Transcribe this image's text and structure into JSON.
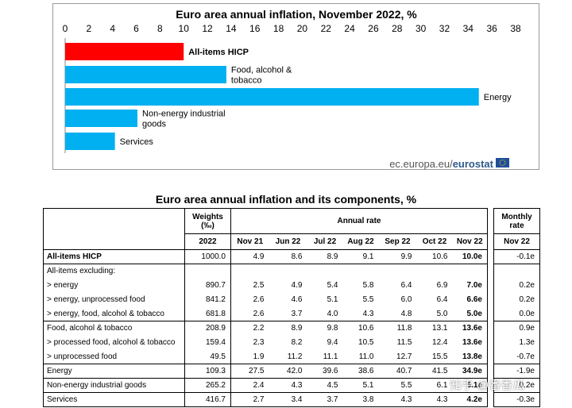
{
  "chart_data": {
    "type": "bar",
    "orientation": "horizontal",
    "title": "Euro area annual inflation, November 2022, %",
    "xlim": [
      0,
      38
    ],
    "ticks": [
      0,
      2,
      4,
      6,
      8,
      10,
      12,
      14,
      16,
      18,
      20,
      22,
      24,
      26,
      28,
      30,
      32,
      34,
      36,
      38
    ],
    "categories": [
      "All-items HICP",
      "Food, alcohol & tobacco",
      "Energy",
      "Non-energy industrial goods",
      "Services"
    ],
    "values": [
      10.0,
      13.6,
      34.9,
      6.1,
      4.2
    ],
    "colors": [
      "#ff0000",
      "#00b0f0",
      "#00b0f0",
      "#00b0f0",
      "#00b0f0"
    ],
    "label_lines": [
      [
        "All-items HICP"
      ],
      [
        "Food, alcohol &",
        "tobacco"
      ],
      [
        "Energy"
      ],
      [
        "Non-energy industrial",
        "goods"
      ],
      [
        "Services"
      ]
    ],
    "footer": {
      "site": "ec.europa.eu/",
      "brand": "eurostat"
    }
  },
  "table": {
    "title": "Euro area annual inflation and its components, %",
    "headers": {
      "weights": "Weights",
      "weights_unit": "(‰)",
      "annual_rate": "Annual rate",
      "monthly_1": "Monthly",
      "monthly_2": "rate",
      "year": "2022",
      "months": [
        "Nov 21",
        "Jun 22",
        "Jul 22",
        "Aug 22",
        "Sep 22",
        "Oct 22",
        "Nov 22"
      ],
      "monthly_month": "Nov 22"
    },
    "rows": [
      {
        "label": "All-items HICP",
        "weight": "1000.0",
        "values": [
          "4.9",
          "8.6",
          "8.9",
          "9.1",
          "9.9",
          "10.6",
          "10.0e"
        ],
        "monthly": "-0.1e"
      },
      {
        "label": "All-items excluding:"
      },
      {
        "label": "> energy",
        "weight": "890.7",
        "values": [
          "2.5",
          "4.9",
          "5.4",
          "5.8",
          "6.4",
          "6.9",
          "7.0e"
        ],
        "monthly": "0.2e"
      },
      {
        "label": "> energy, unprocessed food",
        "weight": "841.2",
        "values": [
          "2.6",
          "4.6",
          "5.1",
          "5.5",
          "6.0",
          "6.4",
          "6.6e"
        ],
        "monthly": "0.2e"
      },
      {
        "label": "> energy, food, alcohol & tobacco",
        "weight": "681.8",
        "values": [
          "2.6",
          "3.7",
          "4.0",
          "4.3",
          "4.8",
          "5.0",
          "5.0e"
        ],
        "monthly": "0.0e"
      },
      {
        "label": "Food, alcohol & tobacco",
        "weight": "208.9",
        "values": [
          "2.2",
          "8.9",
          "9.8",
          "10.6",
          "11.8",
          "13.1",
          "13.6e"
        ],
        "monthly": "0.9e"
      },
      {
        "label": "> processed food, alcohol & tobacco",
        "weight": "159.4",
        "values": [
          "2.3",
          "8.2",
          "9.4",
          "10.5",
          "11.5",
          "12.4",
          "13.6e"
        ],
        "monthly": "1.3e"
      },
      {
        "label": "> unprocessed food",
        "weight": "49.5",
        "values": [
          "1.9",
          "11.2",
          "11.1",
          "11.0",
          "12.7",
          "15.5",
          "13.8e"
        ],
        "monthly": "-0.7e"
      },
      {
        "label": "Energy",
        "weight": "109.3",
        "values": [
          "27.5",
          "42.0",
          "39.6",
          "38.6",
          "40.7",
          "41.5",
          "34.9e"
        ],
        "monthly": "-1.9e"
      },
      {
        "label": "Non-energy industrial goods",
        "weight": "265.2",
        "values": [
          "2.4",
          "4.3",
          "4.5",
          "5.1",
          "5.5",
          "6.1",
          "6.1e"
        ],
        "monthly": "0.2e"
      },
      {
        "label": "Services",
        "weight": "416.7",
        "values": [
          "2.7",
          "3.4",
          "3.7",
          "3.8",
          "4.3",
          "4.3",
          "4.2e"
        ],
        "monthly": "-0.3e"
      }
    ]
  },
  "watermark": "知乎 @番香瓜"
}
